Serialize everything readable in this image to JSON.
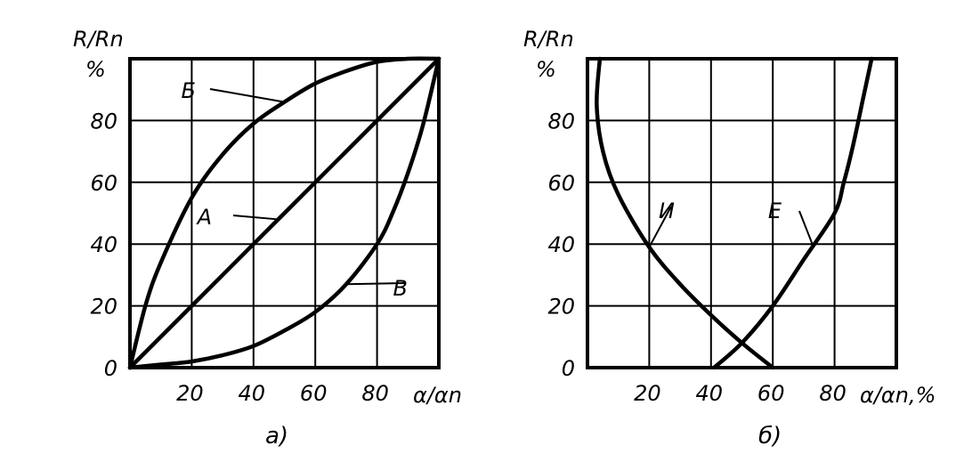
{
  "chart_data": [
    {
      "type": "line",
      "caption": "а)",
      "ylabel_line1": "R/Rn",
      "ylabel_line2": "%",
      "xlabel": "α/αn",
      "xlim": [
        0,
        100
      ],
      "ylim": [
        0,
        100
      ],
      "grid": true,
      "xticks": [
        20,
        40,
        60,
        80
      ],
      "yticks": [
        0,
        20,
        40,
        60,
        80
      ],
      "series": [
        {
          "name": "Б",
          "x": [
            0,
            5,
            10,
            20,
            30,
            40,
            50,
            60,
            70,
            80,
            90,
            100
          ],
          "y": [
            0,
            20,
            34,
            55,
            69,
            79,
            86,
            92,
            96,
            99,
            100,
            100
          ]
        },
        {
          "name": "А",
          "x": [
            0,
            20,
            40,
            60,
            80,
            100
          ],
          "y": [
            0,
            20,
            40,
            60,
            80,
            100
          ]
        },
        {
          "name": "В",
          "x": [
            0,
            10,
            20,
            30,
            40,
            50,
            60,
            70,
            80,
            85,
            90,
            95,
            100
          ],
          "y": [
            0,
            1,
            2,
            4,
            7,
            12,
            18,
            27,
            40,
            50,
            63,
            79,
            100
          ]
        }
      ]
    },
    {
      "type": "line",
      "caption": "б)",
      "ylabel_line1": "R/Rn",
      "ylabel_line2": "%",
      "xlabel": "α/αn,%",
      "xlim": [
        0,
        100
      ],
      "ylim": [
        0,
        100
      ],
      "grid": true,
      "xticks": [
        20,
        40,
        60,
        80
      ],
      "yticks": [
        0,
        20,
        40,
        60,
        80
      ],
      "series": [
        {
          "name": "И",
          "x": [
            4,
            3,
            5,
            10,
            20,
            30,
            40,
            50,
            60
          ],
          "y": [
            100,
            85,
            70,
            56,
            39,
            27,
            17,
            8,
            0
          ]
        },
        {
          "name": "Е",
          "x": [
            41,
            50,
            60,
            70,
            80,
            83,
            86,
            89,
            92
          ],
          "y": [
            0,
            8,
            20,
            35,
            50,
            60,
            72,
            86,
            100
          ]
        }
      ]
    }
  ]
}
